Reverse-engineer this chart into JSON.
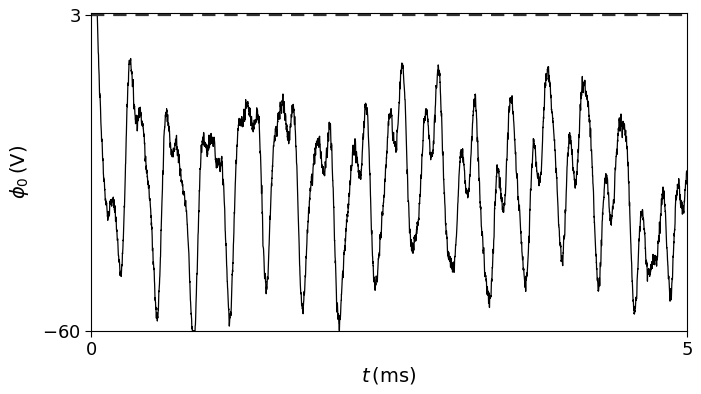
{
  "title": "",
  "xlabel": "$t\\,(\\mathrm{ms})$",
  "ylabel": "$\\phi_0\\,(\\mathrm{V})$",
  "xlim": [
    0,
    5
  ],
  "ylim": [
    -60,
    3.5
  ],
  "yticks": [
    -60,
    3
  ],
  "xticks": [
    0,
    5
  ],
  "dashed_y": 3,
  "background_color": "#ffffff",
  "line_color": "#000000",
  "dashed_color": "#333333",
  "figsize": [
    7.01,
    3.94
  ],
  "dpi": 100
}
